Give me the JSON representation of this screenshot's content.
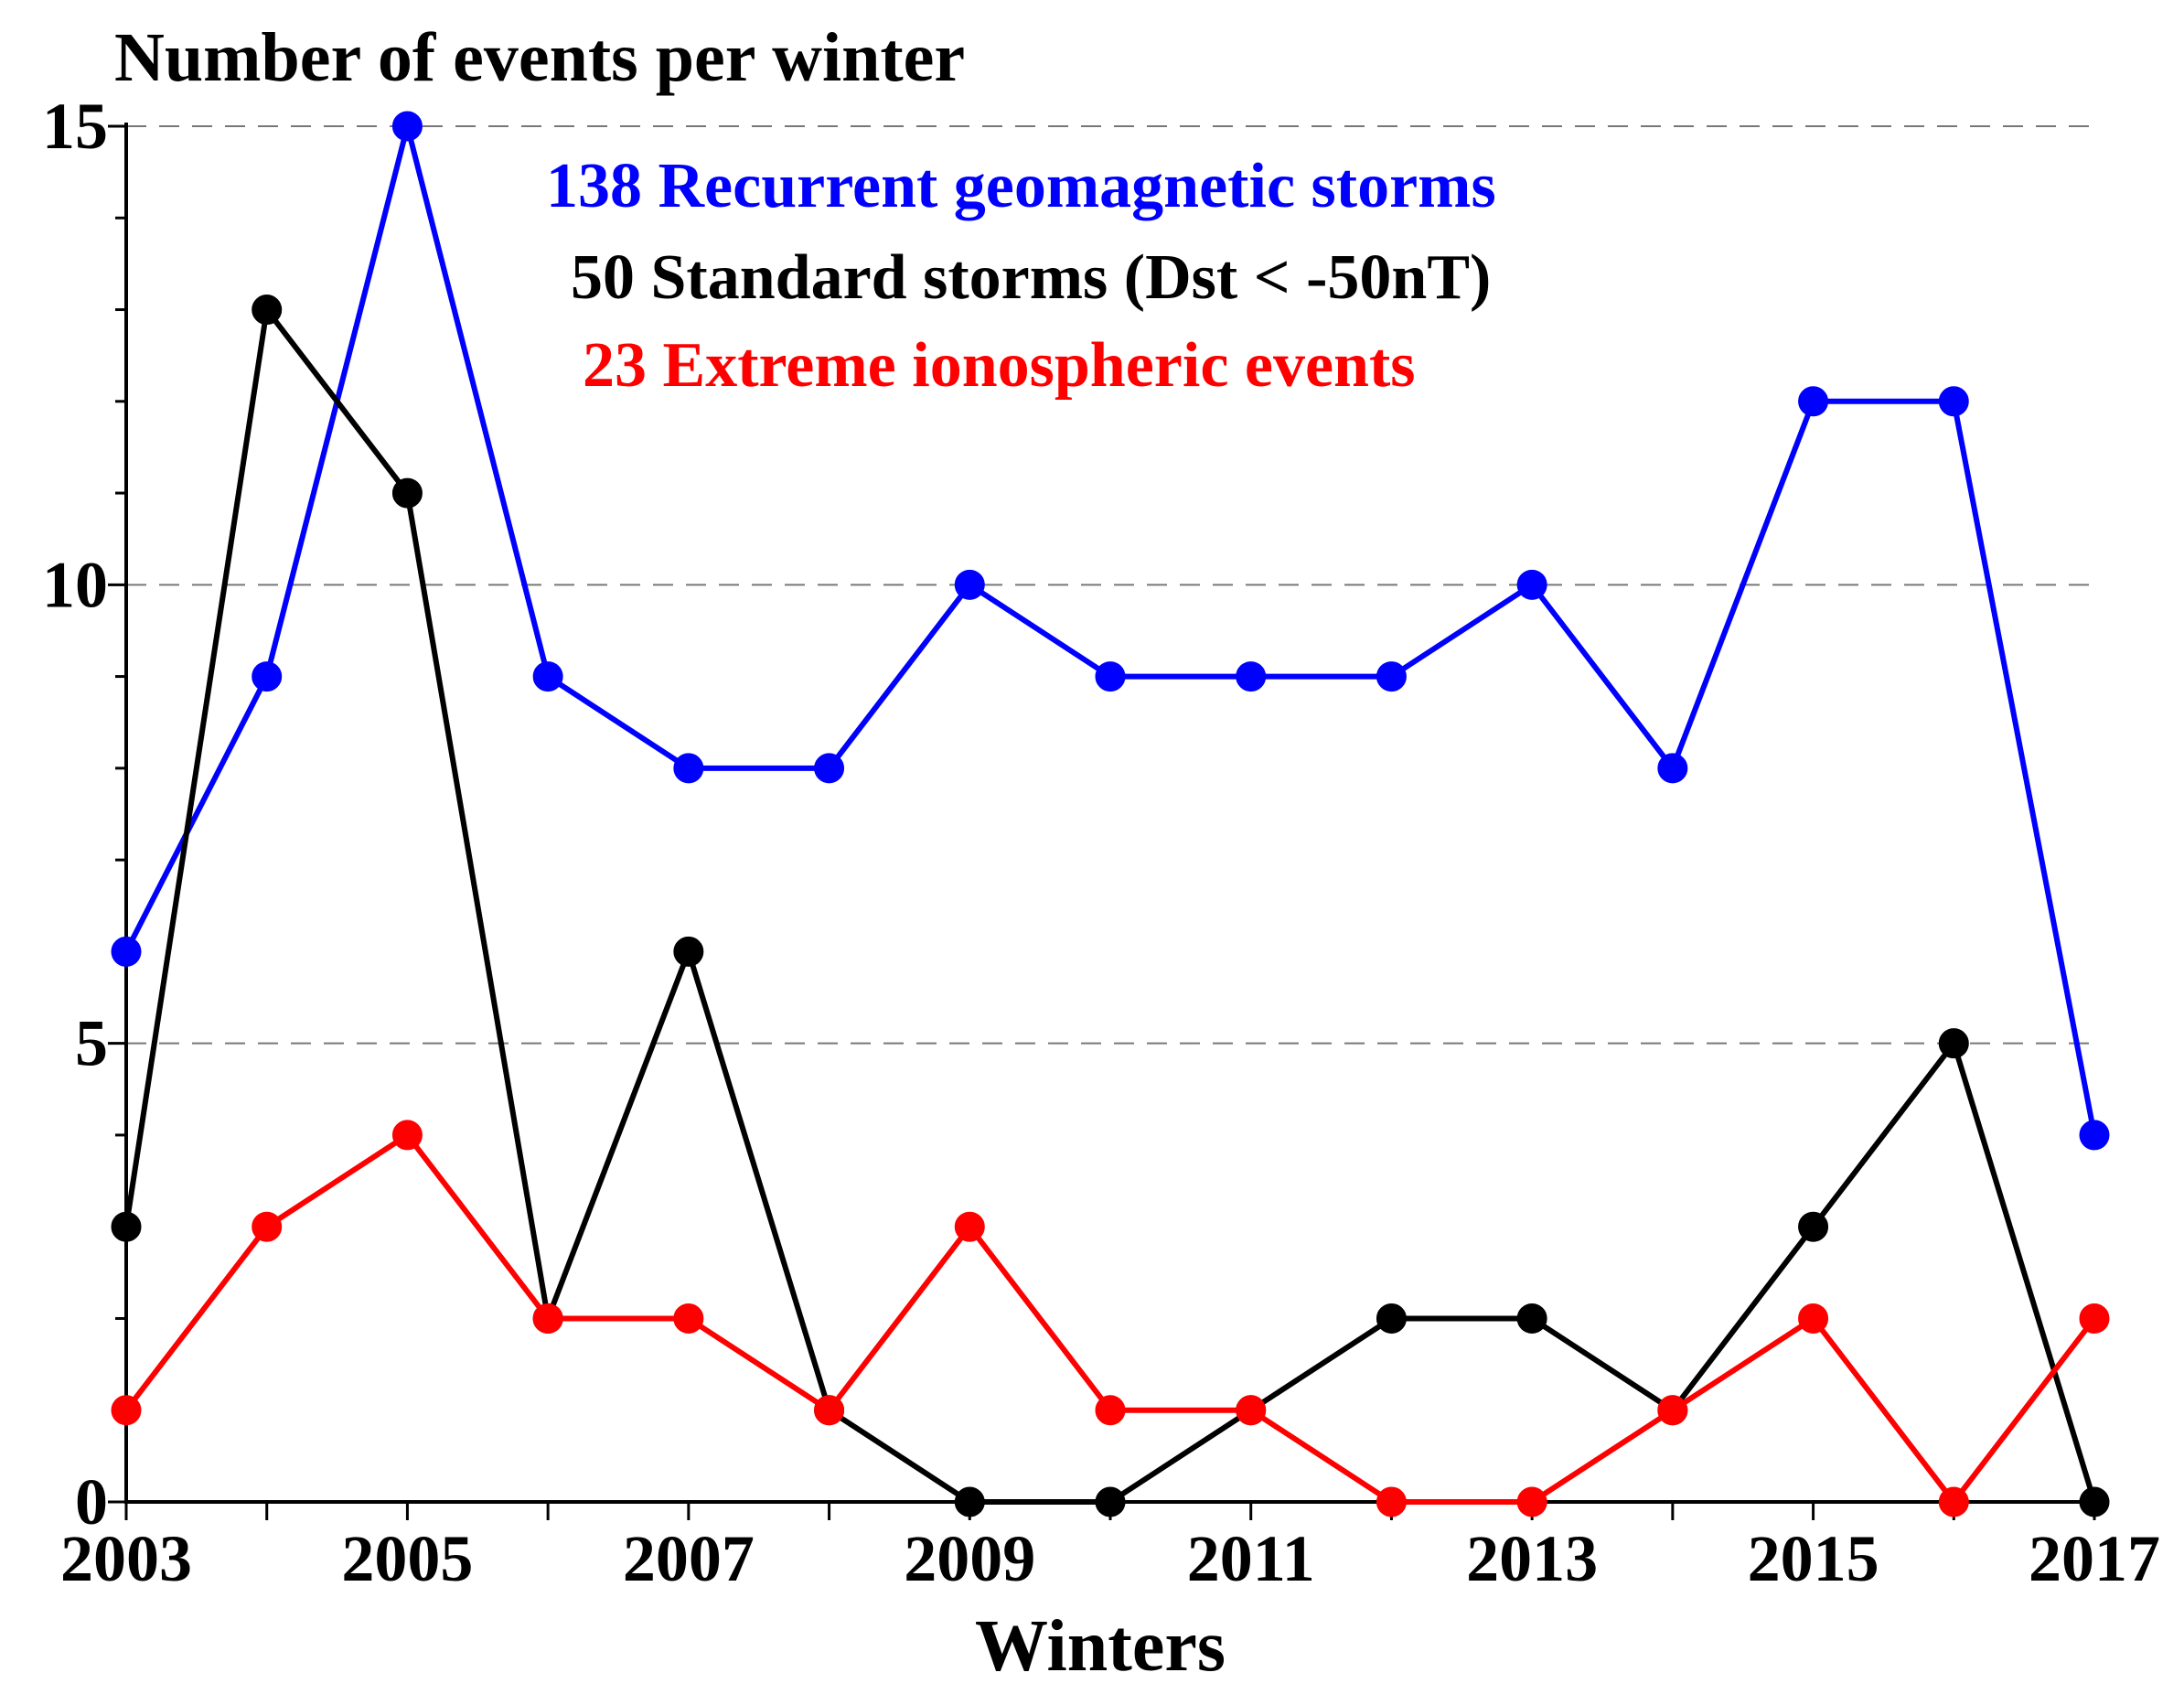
{
  "chart_data": {
    "type": "line",
    "title": "Number of events per winter",
    "xlabel": "Winters",
    "ylabel": "Number of events per winter",
    "x": [
      2003,
      2004,
      2005,
      2006,
      2007,
      2008,
      2009,
      2010,
      2011,
      2012,
      2013,
      2014,
      2015,
      2016,
      2017
    ],
    "x_tick_labels": [
      "2003",
      "2005",
      "2007",
      "2009",
      "2011",
      "2013",
      "2015",
      "2017"
    ],
    "x_tick_values": [
      2003,
      2005,
      2007,
      2009,
      2011,
      2013,
      2015,
      2017
    ],
    "y_tick_labels": [
      "0",
      "5",
      "10",
      "15"
    ],
    "y_tick_values": [
      0,
      5,
      10,
      15
    ],
    "xlim": [
      2003,
      2017
    ],
    "ylim": [
      0,
      15
    ],
    "grid": "dashed horizontal at 5, 10, 15",
    "legend_placement": "top-center",
    "series": [
      {
        "name": "138 Recurrent geomagnetic storms",
        "color": "#0000ff",
        "values": [
          6,
          9,
          15,
          9,
          8,
          8,
          10,
          9,
          9,
          9,
          10,
          8,
          12,
          12,
          4
        ]
      },
      {
        "name": "50 Standard storms (Dst < -50nT)",
        "color": "#000000",
        "values": [
          3,
          13,
          11,
          2,
          6,
          1,
          0,
          0,
          1,
          2,
          2,
          1,
          3,
          5,
          0
        ]
      },
      {
        "name": "23 Extreme ionospheric events",
        "color": "#ff0000",
        "values": [
          1,
          3,
          4,
          2,
          2,
          1,
          3,
          1,
          1,
          0,
          0,
          1,
          2,
          0,
          2
        ]
      }
    ]
  }
}
